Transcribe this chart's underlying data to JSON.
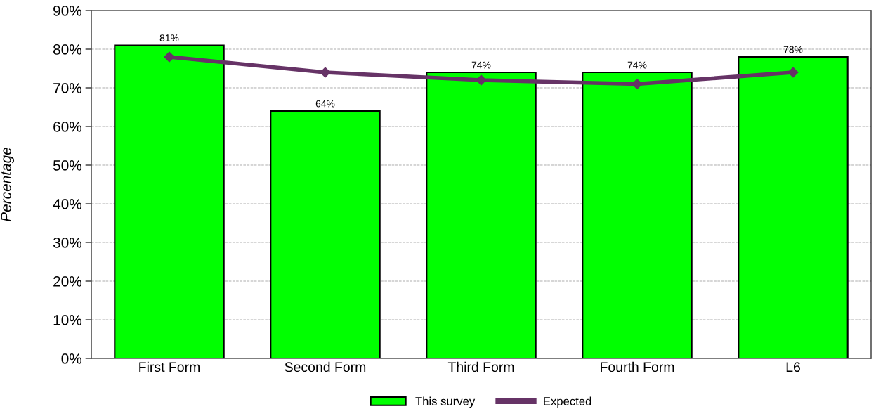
{
  "chart_data": {
    "type": "bar",
    "ylabel": "Percentage",
    "categories": [
      "First Form",
      "Second Form",
      "Third Form",
      "Fourth Form",
      "L6"
    ],
    "series": [
      {
        "name": "This survey",
        "color": "#00ff00",
        "values": [
          81,
          64,
          74,
          74,
          78
        ],
        "value_labels": [
          "81%",
          "64%",
          "74%",
          "74%",
          "78%"
        ]
      },
      {
        "name": "Expected",
        "type": "line",
        "color": "#663366",
        "values": [
          78,
          74,
          72,
          71,
          74
        ],
        "marker": "diamond",
        "line_style": "solid"
      }
    ],
    "ylim": [
      0,
      90
    ],
    "yticks": [
      {
        "value": 0,
        "label": "0%"
      },
      {
        "value": 10,
        "label": "10%"
      },
      {
        "value": 20,
        "label": "20%"
      },
      {
        "value": 30,
        "label": "30%"
      },
      {
        "value": 40,
        "label": "40%"
      },
      {
        "value": 50,
        "label": "50%"
      },
      {
        "value": 60,
        "label": "60%"
      },
      {
        "value": 70,
        "label": "70%"
      },
      {
        "value": 80,
        "label": "80%"
      },
      {
        "value": 90,
        "label": "90%"
      }
    ],
    "grid": "y",
    "legend": "bottom"
  }
}
